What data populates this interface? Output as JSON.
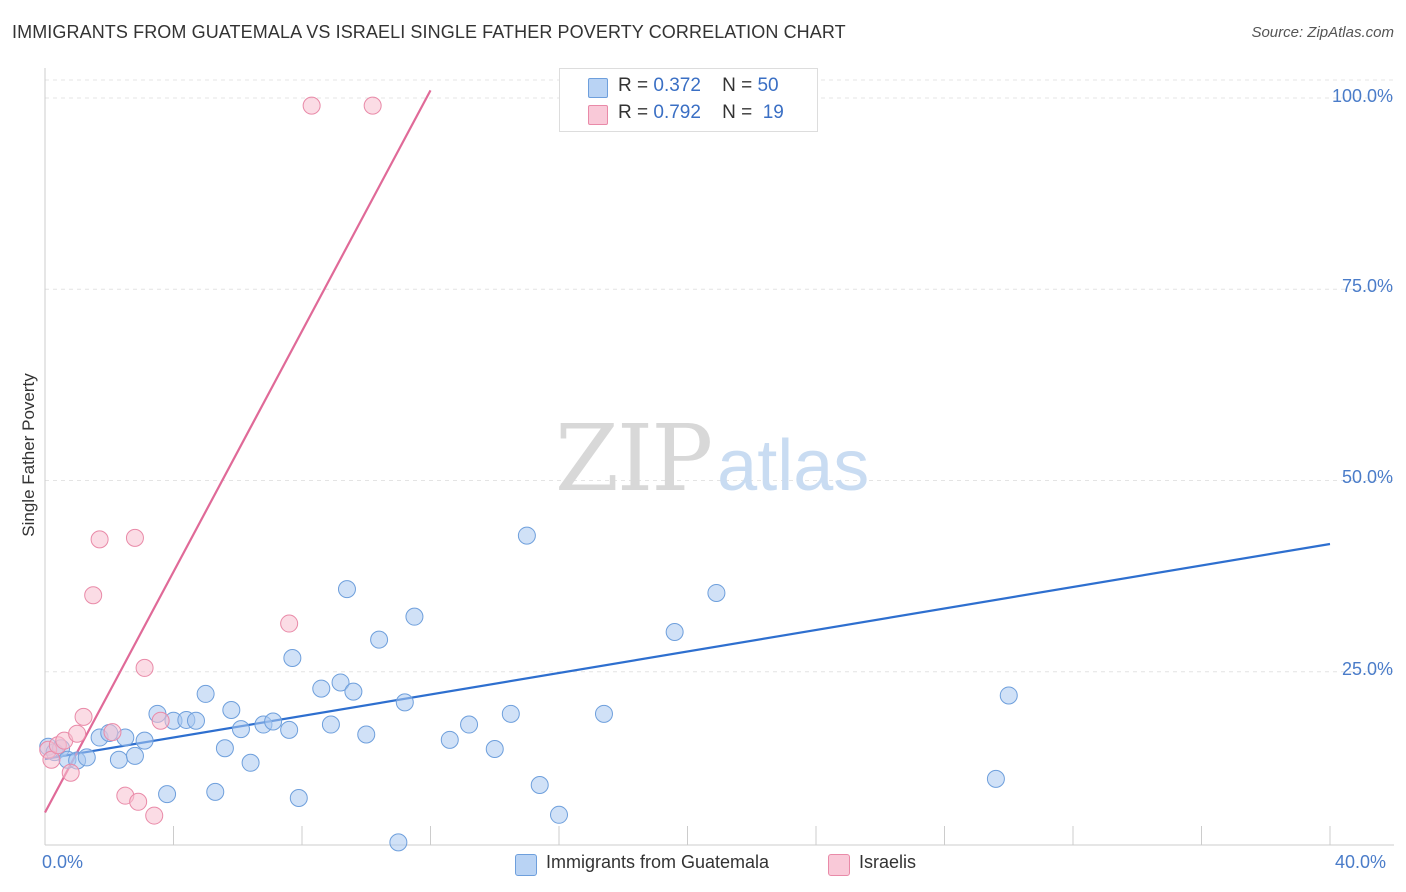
{
  "title": "IMMIGRANTS FROM GUATEMALA VS ISRAELI SINGLE FATHER POVERTY CORRELATION CHART",
  "source": "Source: ZipAtlas.com",
  "watermark": {
    "zip": "ZIP",
    "atlas": "atlas"
  },
  "legend": {
    "r_label": "R =",
    "n_label": "N =",
    "series": [
      {
        "r": "0.372",
        "n": "50"
      },
      {
        "r": "0.792",
        "n": "19"
      }
    ]
  },
  "chart_data": {
    "type": "scatter",
    "title": "IMMIGRANTS FROM GUATEMALA VS ISRAELI SINGLE FATHER POVERTY CORRELATION CHART",
    "xlabel": "",
    "ylabel": "Single Father Poverty",
    "xlim": [
      0,
      40
    ],
    "ylim": [
      0,
      100
    ],
    "x_tick_labels": [
      "0.0%",
      "40.0%"
    ],
    "y_tick_labels": [
      "25.0%",
      "50.0%",
      "75.0%",
      "100.0%"
    ],
    "y_ticks": [
      25,
      50,
      75,
      100
    ],
    "grid": true,
    "legend_position": "top-center",
    "series": [
      {
        "name": "Immigrants from Guatemala",
        "color": "#a9c8f0",
        "edge": "#6e9fdc",
        "line_color": "#2e6fcf",
        "trend": {
          "x": [
            0,
            40
          ],
          "y": [
            13.6,
            41.7
          ]
        },
        "points": [
          {
            "x": 0.1,
            "y": 15.2
          },
          {
            "x": 0.3,
            "y": 14.5
          },
          {
            "x": 0.5,
            "y": 15.0
          },
          {
            "x": 0.7,
            "y": 13.5
          },
          {
            "x": 1.0,
            "y": 13.4
          },
          {
            "x": 1.3,
            "y": 13.8
          },
          {
            "x": 1.7,
            "y": 16.4
          },
          {
            "x": 2.0,
            "y": 17.0
          },
          {
            "x": 2.3,
            "y": 13.5
          },
          {
            "x": 2.5,
            "y": 16.4
          },
          {
            "x": 2.8,
            "y": 14.0
          },
          {
            "x": 3.1,
            "y": 16.0
          },
          {
            "x": 3.5,
            "y": 19.5
          },
          {
            "x": 3.8,
            "y": 9.0
          },
          {
            "x": 4.0,
            "y": 18.6
          },
          {
            "x": 4.4,
            "y": 18.7
          },
          {
            "x": 4.7,
            "y": 18.6
          },
          {
            "x": 5.0,
            "y": 22.1
          },
          {
            "x": 5.3,
            "y": 9.3
          },
          {
            "x": 5.6,
            "y": 15.0
          },
          {
            "x": 5.8,
            "y": 20.0
          },
          {
            "x": 6.1,
            "y": 17.5
          },
          {
            "x": 6.4,
            "y": 13.1
          },
          {
            "x": 6.8,
            "y": 18.1
          },
          {
            "x": 7.1,
            "y": 18.5
          },
          {
            "x": 7.6,
            "y": 17.4
          },
          {
            "x": 7.7,
            "y": 26.8
          },
          {
            "x": 7.9,
            "y": 8.5
          },
          {
            "x": 8.6,
            "y": 22.8
          },
          {
            "x": 8.9,
            "y": 18.1
          },
          {
            "x": 9.2,
            "y": 23.6
          },
          {
            "x": 9.4,
            "y": 35.8
          },
          {
            "x": 9.6,
            "y": 22.4
          },
          {
            "x": 10.0,
            "y": 16.8
          },
          {
            "x": 10.4,
            "y": 29.2
          },
          {
            "x": 11.0,
            "y": 2.7
          },
          {
            "x": 11.2,
            "y": 21.0
          },
          {
            "x": 11.5,
            "y": 32.2
          },
          {
            "x": 12.6,
            "y": 16.1
          },
          {
            "x": 13.2,
            "y": 18.1
          },
          {
            "x": 14.0,
            "y": 14.9
          },
          {
            "x": 14.5,
            "y": 19.5
          },
          {
            "x": 15.0,
            "y": 42.8
          },
          {
            "x": 15.4,
            "y": 10.2
          },
          {
            "x": 16.0,
            "y": 6.3
          },
          {
            "x": 17.4,
            "y": 19.5
          },
          {
            "x": 19.6,
            "y": 30.2
          },
          {
            "x": 20.9,
            "y": 35.3
          },
          {
            "x": 29.6,
            "y": 11.0
          },
          {
            "x": 30.0,
            "y": 21.9
          }
        ]
      },
      {
        "name": "Israelis",
        "color": "#f7bfd0",
        "edge": "#e98aa8",
        "line_color": "#e06a98",
        "trend": {
          "x": [
            0,
            12.0
          ],
          "y": [
            6.6,
            101.0
          ]
        },
        "points": [
          {
            "x": 0.1,
            "y": 14.8
          },
          {
            "x": 0.2,
            "y": 13.5
          },
          {
            "x": 0.4,
            "y": 15.4
          },
          {
            "x": 0.6,
            "y": 16.0
          },
          {
            "x": 0.8,
            "y": 11.8
          },
          {
            "x": 1.0,
            "y": 16.9
          },
          {
            "x": 1.2,
            "y": 19.1
          },
          {
            "x": 1.5,
            "y": 35.0
          },
          {
            "x": 1.7,
            "y": 42.3
          },
          {
            "x": 2.1,
            "y": 17.1
          },
          {
            "x": 2.5,
            "y": 8.8
          },
          {
            "x": 2.8,
            "y": 42.5
          },
          {
            "x": 2.9,
            "y": 8.0
          },
          {
            "x": 3.1,
            "y": 25.5
          },
          {
            "x": 3.4,
            "y": 6.2
          },
          {
            "x": 3.6,
            "y": 18.6
          },
          {
            "x": 7.6,
            "y": 31.3
          },
          {
            "x": 8.3,
            "y": 99.0
          },
          {
            "x": 10.2,
            "y": 99.0
          }
        ]
      }
    ]
  }
}
